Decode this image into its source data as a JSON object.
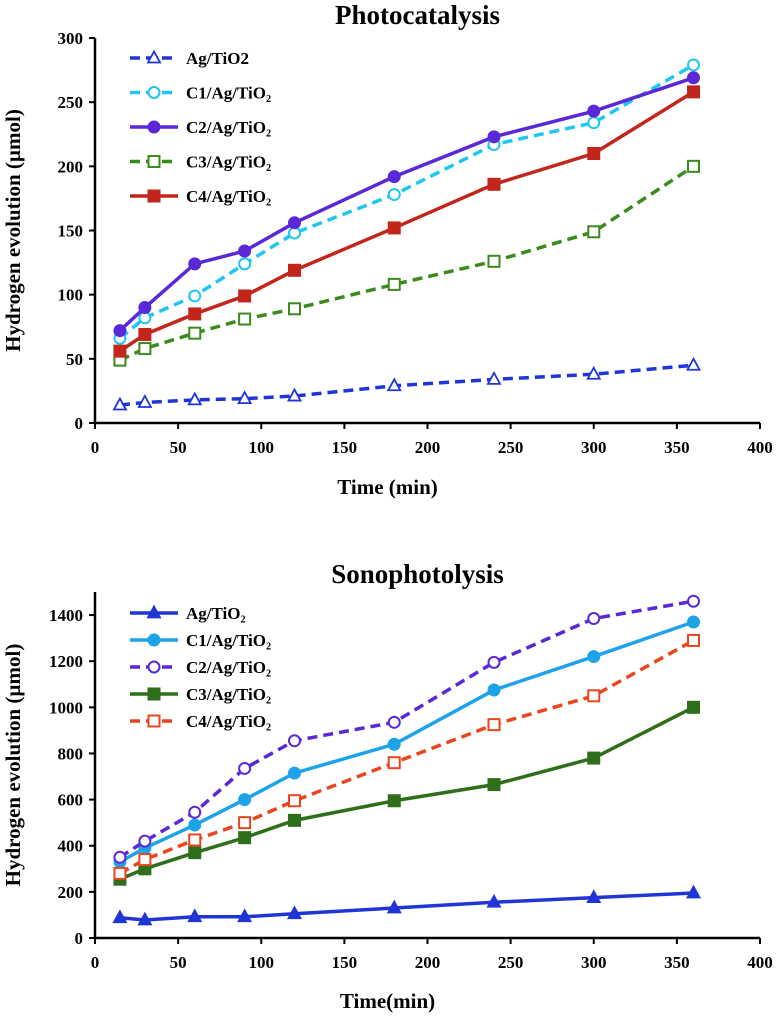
{
  "chart_data": [
    {
      "type": "line",
      "title": "Photocatalysis",
      "xlabel": "Time (min)",
      "ylabel": "Hydrogen evolution (µmol)",
      "xlim": [
        0,
        400
      ],
      "ylim": [
        0,
        300
      ],
      "xticks": [
        0,
        50,
        100,
        150,
        200,
        250,
        300,
        350,
        400
      ],
      "yticks": [
        0,
        50,
        100,
        150,
        200,
        250,
        300
      ],
      "grid": false,
      "legend_position": "top-left",
      "x": [
        15,
        30,
        60,
        90,
        120,
        180,
        240,
        300,
        360
      ],
      "series": [
        {
          "name": "Ag/TiO2",
          "values": [
            14,
            16,
            18,
            19,
            21,
            29,
            34,
            38,
            45
          ],
          "color": "#2035d6",
          "dash": "dashed",
          "marker": "triangle-open"
        },
        {
          "name": "C1/Ag/TiO₂",
          "values": [
            66,
            82,
            99,
            124,
            148,
            178,
            217,
            234,
            279
          ],
          "color": "#1fc6f2",
          "dash": "dashed",
          "marker": "circle-open"
        },
        {
          "name": "C2/Ag/TiO₂",
          "values": [
            72,
            90,
            124,
            134,
            156,
            192,
            223,
            243,
            269
          ],
          "color": "#5a28d6",
          "dash": "solid",
          "marker": "circle-filled"
        },
        {
          "name": "C3/Ag/TiO₂",
          "values": [
            49,
            58,
            70,
            81,
            89,
            108,
            126,
            149,
            200
          ],
          "color": "#3a8a1c",
          "dash": "dashed",
          "marker": "square-open"
        },
        {
          "name": "C4/Ag/TiO₂",
          "values": [
            56,
            69,
            85,
            99,
            119,
            152,
            186,
            210,
            258
          ],
          "color": "#c2261a",
          "dash": "solid",
          "marker": "square-filled"
        }
      ]
    },
    {
      "type": "line",
      "title": "Sonophotolysis",
      "xlabel": "Time(min)",
      "ylabel": "Hydrogen evolution (µmol)",
      "xlim": [
        0,
        400
      ],
      "ylim": [
        0,
        1500
      ],
      "xticks": [
        0,
        50,
        100,
        150,
        200,
        250,
        300,
        350,
        400
      ],
      "yticks": [
        0,
        200,
        400,
        600,
        800,
        1000,
        1200,
        1400
      ],
      "grid": false,
      "legend_position": "top-left",
      "x": [
        15,
        30,
        60,
        90,
        120,
        180,
        240,
        300,
        360
      ],
      "series": [
        {
          "name": "Ag/TiO₂",
          "values": [
            88,
            78,
            92,
            92,
            105,
            130,
            155,
            175,
            195
          ],
          "color": "#2035d6",
          "dash": "solid",
          "marker": "triangle-filled"
        },
        {
          "name": "C1/Ag/TiO₂",
          "values": [
            330,
            390,
            490,
            600,
            715,
            840,
            1075,
            1220,
            1370
          ],
          "color": "#1ea3e8",
          "dash": "solid",
          "marker": "circle-filled"
        },
        {
          "name": "C2/Ag/TiO₂",
          "values": [
            350,
            420,
            545,
            735,
            855,
            935,
            1195,
            1385,
            1460
          ],
          "color": "#5a28d6",
          "dash": "dashed",
          "marker": "circle-open"
        },
        {
          "name": "C3/Ag/TiO₂",
          "values": [
            255,
            300,
            370,
            435,
            510,
            595,
            665,
            780,
            1000
          ],
          "color": "#2f6e1a",
          "dash": "solid",
          "marker": "square-filled"
        },
        {
          "name": "C4/Ag/TiO₂",
          "values": [
            280,
            340,
            425,
            500,
            595,
            760,
            925,
            1050,
            1290
          ],
          "color": "#e8461f",
          "dash": "dashed",
          "marker": "square-open"
        }
      ]
    }
  ]
}
